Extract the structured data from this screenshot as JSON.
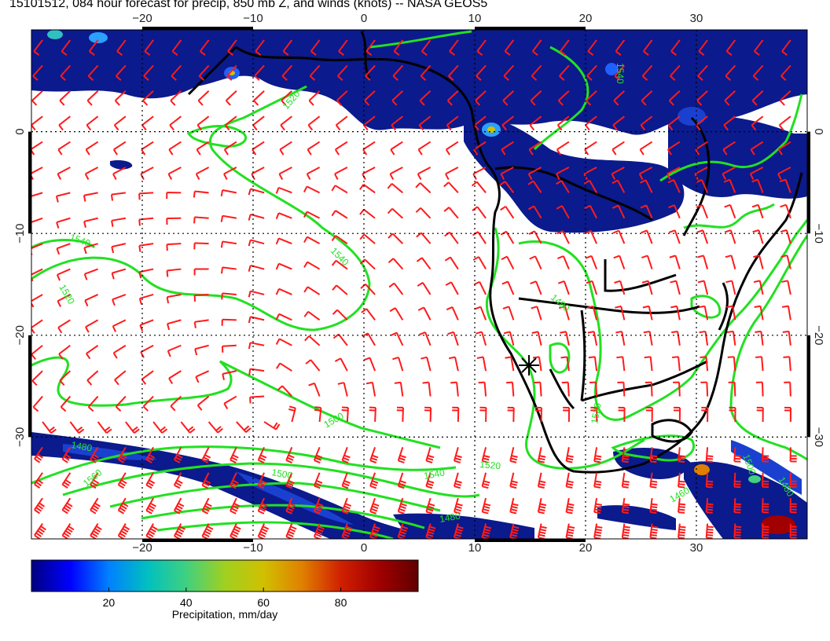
{
  "title": "15101512, 084 hour forecast for precip, 850 mb Z, and winds (knots) -- NASA GEOS5",
  "map": {
    "projection": "cylindrical",
    "lon_range": [
      -30,
      40
    ],
    "lat_range": [
      -40,
      10
    ],
    "lon_ticks": [
      -20,
      -10,
      0,
      10,
      20,
      30
    ],
    "lat_ticks": [
      0,
      -10,
      -20,
      -30
    ],
    "lon_tick_labels": [
      "−20",
      "−10",
      "0",
      "10",
      "20",
      "30"
    ],
    "lat_tick_labels": [
      "0",
      "−10",
      "−20",
      "−30"
    ],
    "gridlines": "dotted",
    "wind_barb_color": "#ff1a1a",
    "contour_color": "#22e022",
    "coastline_color": "#000000",
    "contour_labels": [
      "1520",
      "1540",
      "1540",
      "1520",
      "1500",
      "1480",
      "1540",
      "1560",
      "1520",
      "1500",
      "1480",
      "1460",
      "1480",
      "1500",
      "1520",
      "1480",
      "1540"
    ],
    "station_marker": "asterisk"
  },
  "colorbar": {
    "label": "Precipitation, mm/day",
    "ticks": [
      "20",
      "40",
      "60",
      "80"
    ],
    "tick_values": [
      20,
      40,
      60,
      80
    ],
    "range": [
      0,
      100
    ],
    "colors": [
      "#000080",
      "#0000ff",
      "#0080ff",
      "#00c0c0",
      "#40d080",
      "#a0d020",
      "#d0c000",
      "#e08000",
      "#d02000",
      "#a00000",
      "#600000"
    ]
  }
}
